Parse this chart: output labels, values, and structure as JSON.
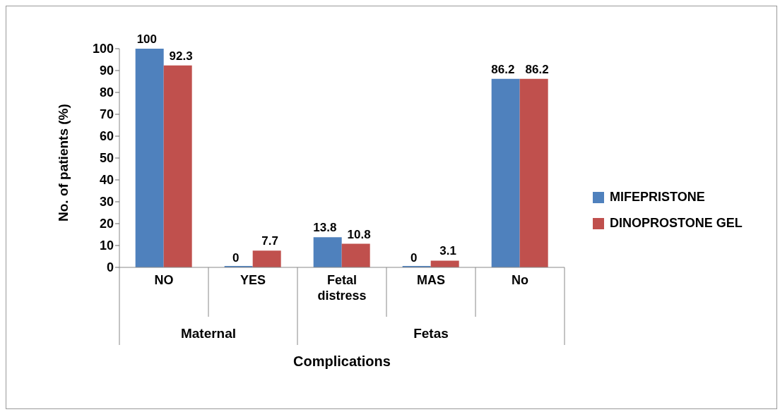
{
  "chart_data": {
    "type": "bar",
    "xlabel": "Complications",
    "ylabel": "No. of patients (%)",
    "categories": [
      "NO",
      "YES",
      "Fetal distress",
      "MAS",
      "No"
    ],
    "series": [
      {
        "name": "MIFEPRISTONE",
        "color": "#4f81bd",
        "values": [
          100,
          0,
          13.8,
          0,
          86.2
        ]
      },
      {
        "name": "DINOPROSTONE GEL",
        "color": "#c0504d",
        "values": [
          92.3,
          7.7,
          10.8,
          3.1,
          86.2
        ]
      }
    ],
    "ylim": [
      0,
      100
    ],
    "yticks": [
      0,
      10,
      20,
      30,
      40,
      50,
      60,
      70,
      80,
      90,
      100
    ],
    "grid": false,
    "legend": "right",
    "data_labels": true,
    "annotations": [
      "Maternal",
      "Fetas"
    ]
  }
}
